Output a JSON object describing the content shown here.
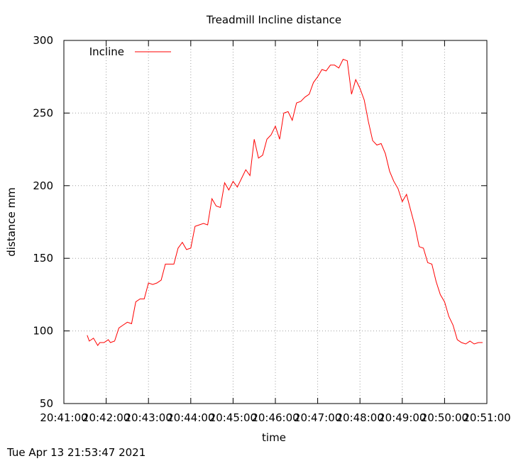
{
  "footer": {
    "timestamp": "Tue Apr 13 21:53:47 2021"
  },
  "chart_data": {
    "type": "line",
    "title": "Treadmill Incline distance",
    "xlabel": "time",
    "ylabel": "distance mm",
    "xlim": [
      "20:41:00",
      "20:51:00"
    ],
    "ylim": [
      50,
      300
    ],
    "xticks": [
      "20:41:00",
      "20:42:00",
      "20:43:00",
      "20:44:00",
      "20:45:00",
      "20:46:00",
      "20:47:00",
      "20:48:00",
      "20:49:00",
      "20:50:00",
      "20:51:00"
    ],
    "yticks": [
      50,
      100,
      150,
      200,
      250,
      300
    ],
    "grid": true,
    "grid_style": "dotted",
    "legend_position": "top-left",
    "colors": {
      "series": "#ff0000",
      "grid": "#a0a0a0",
      "frame": "#000000"
    },
    "series": [
      {
        "name": "Incline",
        "x": [
          "20:41:33",
          "20:41:36",
          "20:41:42",
          "20:41:48",
          "20:41:51",
          "20:41:57",
          "20:42:03",
          "20:42:06",
          "20:42:12",
          "20:42:18",
          "20:42:24",
          "20:42:30",
          "20:42:36",
          "20:42:42",
          "20:42:48",
          "20:42:54",
          "20:43:00",
          "20:43:06",
          "20:43:12",
          "20:43:18",
          "20:43:24",
          "20:43:30",
          "20:43:36",
          "20:43:42",
          "20:43:48",
          "20:43:54",
          "20:44:00",
          "20:44:06",
          "20:44:12",
          "20:44:18",
          "20:44:24",
          "20:44:30",
          "20:44:36",
          "20:44:42",
          "20:44:48",
          "20:44:54",
          "20:45:00",
          "20:45:06",
          "20:45:12",
          "20:45:18",
          "20:45:24",
          "20:45:30",
          "20:45:36",
          "20:45:42",
          "20:45:48",
          "20:45:54",
          "20:46:00",
          "20:46:06",
          "20:46:12",
          "20:46:18",
          "20:46:24",
          "20:46:30",
          "20:46:36",
          "20:46:42",
          "20:46:48",
          "20:46:54",
          "20:47:00",
          "20:47:06",
          "20:47:12",
          "20:47:18",
          "20:47:24",
          "20:47:30",
          "20:47:36",
          "20:47:42",
          "20:47:48",
          "20:47:54",
          "20:48:00",
          "20:48:06",
          "20:48:12",
          "20:48:18",
          "20:48:24",
          "20:48:30",
          "20:48:36",
          "20:48:42",
          "20:48:48",
          "20:48:54",
          "20:49:00",
          "20:49:06",
          "20:49:12",
          "20:49:18",
          "20:49:24",
          "20:49:30",
          "20:49:36",
          "20:49:42",
          "20:49:48",
          "20:49:54",
          "20:50:00",
          "20:50:06",
          "20:50:12",
          "20:50:18",
          "20:50:24",
          "20:50:30",
          "20:50:36",
          "20:50:42",
          "20:50:48",
          "20:50:54"
        ],
        "y": [
          97,
          93,
          95,
          90,
          92,
          92,
          94,
          92,
          93,
          102,
          104,
          106,
          105,
          120,
          122,
          122,
          133,
          132,
          133,
          135,
          146,
          146,
          146,
          157,
          161,
          156,
          157,
          172,
          173,
          174,
          173,
          191,
          186,
          185,
          202,
          197,
          203,
          199,
          205,
          211,
          207,
          232,
          219,
          221,
          232,
          235,
          241,
          232,
          250,
          251,
          245,
          257,
          258,
          261,
          263,
          271,
          275,
          280,
          279,
          283,
          283,
          281,
          287,
          286,
          263,
          273,
          267,
          259,
          244,
          231,
          228,
          229,
          222,
          210,
          203,
          198,
          189,
          194,
          183,
          172,
          158,
          157,
          147,
          146,
          134,
          125,
          120,
          110,
          104,
          94,
          92,
          91,
          93,
          91,
          92,
          92
        ]
      }
    ]
  }
}
